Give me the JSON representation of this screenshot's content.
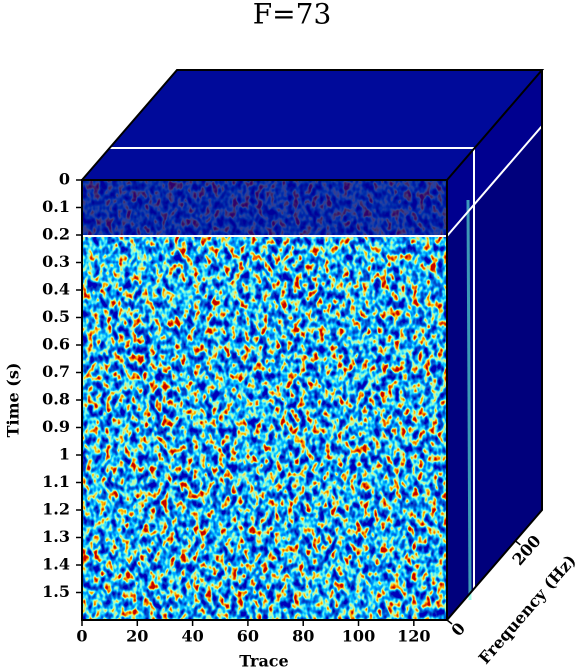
{
  "chart_data": {
    "type": "cube",
    "title": "F=73",
    "x_label": "Trace",
    "y_label": "Time (s)",
    "z_label": "Frequency (Hz)",
    "xlim": [
      0,
      132
    ],
    "xticks": [
      0,
      20,
      40,
      60,
      80,
      100,
      120
    ],
    "ylim": [
      0,
      1.6
    ],
    "yticks": [
      0,
      0.1,
      0.2,
      0.3,
      0.4,
      0.5,
      0.6,
      0.7,
      0.8,
      0.9,
      1,
      1.1,
      1.2,
      1.3,
      1.4,
      1.5
    ],
    "zlim": [
      0,
      278
    ],
    "zticks": [
      0,
      200
    ]
  }
}
